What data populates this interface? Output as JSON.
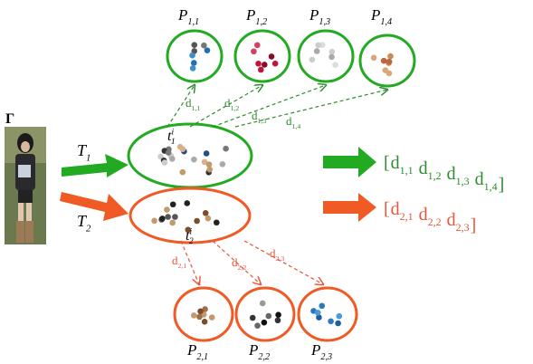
{
  "image_label": "Γ",
  "vector_open": "[",
  "vector_close": "]",
  "tasks": [
    {
      "label": {
        "base": "T",
        "sub": "1"
      },
      "cluster": {
        "base": "t",
        "sup": "i",
        "sub": "1"
      },
      "prototypes": [
        {
          "base": "P",
          "sub": "1,1"
        },
        {
          "base": "P",
          "sub": "1,2"
        },
        {
          "base": "P",
          "sub": "1,3"
        },
        {
          "base": "P",
          "sub": "1,4"
        }
      ],
      "distances": [
        {
          "base": "d",
          "sub": "1,1"
        },
        {
          "base": "d",
          "sub": "1,2"
        },
        {
          "base": "d",
          "sub": "1,3"
        },
        {
          "base": "d",
          "sub": "1,4"
        }
      ]
    },
    {
      "label": {
        "base": "T",
        "sub": "2"
      },
      "cluster": {
        "base": "t",
        "sup": "i",
        "sub": "2"
      },
      "prototypes": [
        {
          "base": "P",
          "sub": "2,1"
        },
        {
          "base": "P",
          "sub": "2,2"
        },
        {
          "base": "P",
          "sub": "2,3"
        }
      ],
      "distances": [
        {
          "base": "d",
          "sub": "2,1"
        },
        {
          "base": "d",
          "sub": "2,2"
        },
        {
          "base": "d",
          "sub": "2,3"
        }
      ]
    }
  ]
}
